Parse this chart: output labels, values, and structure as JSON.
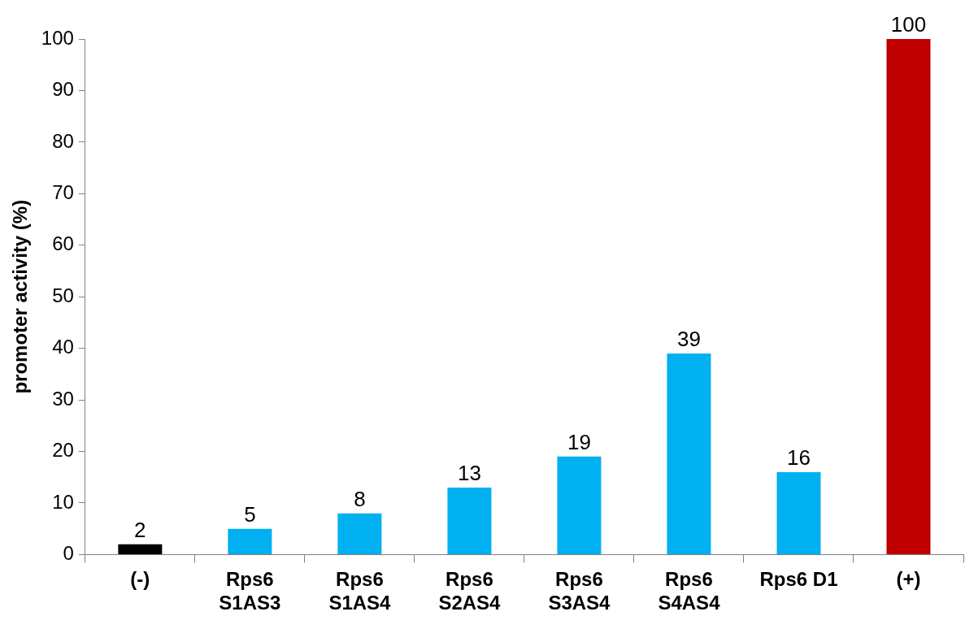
{
  "chart_data": {
    "type": "bar",
    "ylabel": "promoter activity (%)",
    "categories": [
      "(-)",
      "Rps6 S1AS3",
      "Rps6 S1AS4",
      "Rps6 S2AS4",
      "Rps6 S3AS4",
      "Rps6 S4AS4",
      "Rps6 D1",
      "(+)"
    ],
    "values": [
      2,
      5,
      8,
      13,
      19,
      39,
      16,
      100
    ],
    "colors": [
      "#000000",
      "#00b0f0",
      "#00b0f0",
      "#00b0f0",
      "#00b0f0",
      "#00b0f0",
      "#00b0f0",
      "#c00000"
    ],
    "ylim": [
      0,
      100
    ],
    "yticks": [
      0,
      10,
      20,
      30,
      40,
      50,
      60,
      70,
      80,
      90,
      100
    ],
    "grid": false,
    "legend": false,
    "data_labels": true
  }
}
